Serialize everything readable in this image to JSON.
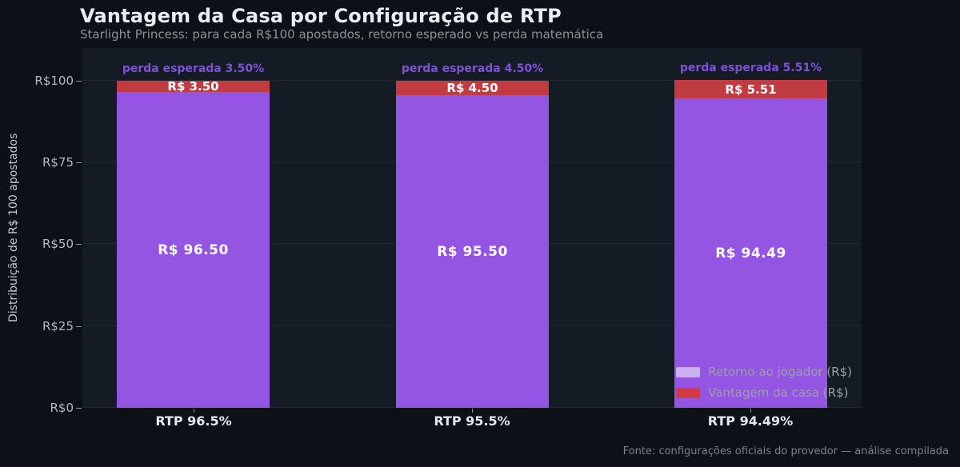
{
  "page": {
    "title": "Vantagem da Casa por Configuração de RTP",
    "subtitle": "Starlight Princess: para cada R$100 apostados, retorno esperado vs perda matemática",
    "footer": "Fonte: configurações oficiais do provedor — análise compilada"
  },
  "chart_data": {
    "type": "bar",
    "stacked": true,
    "title": "Vantagem da Casa por Configuração de RTP",
    "subtitle": "Starlight Princess: para cada R$100 apostados, retorno esperado vs perda matemática",
    "categories": [
      "RTP 96.5%",
      "RTP 95.5%",
      "RTP 94.49%"
    ],
    "series": [
      {
        "name": "Retorno ao jogador (R$)",
        "values": [
          96.5,
          95.5,
          94.49
        ]
      },
      {
        "name": "Vantagem da casa (R$)",
        "values": [
          3.5,
          4.5,
          5.51
        ]
      }
    ],
    "player_value_labels": [
      "R$ 96.50",
      "R$ 95.50",
      "R$ 94.49"
    ],
    "house_value_labels": [
      "R$ 3.50",
      "R$ 4.50",
      "R$ 5.51"
    ],
    "annotations": [
      "perda esperada 3.50%",
      "perda esperada 4.50%",
      "perda esperada 5.51%"
    ],
    "xlabel": "",
    "ylabel": "Distribuição de R$ 100 apostados",
    "yticks": [
      "R$0",
      "R$25",
      "R$50",
      "R$75",
      "R$100"
    ],
    "ytick_values": [
      0,
      25,
      50,
      75,
      100
    ],
    "ylim": [
      0,
      110
    ],
    "grid": true,
    "legend_position": "lower right"
  },
  "colors": {
    "background": "#0d1117",
    "plot_background": "#151b24",
    "grid_color": "#212834",
    "title_color": "#e9edf1",
    "muted_color": "#8b929a",
    "bar_player": "#9355e2",
    "bar_house": "#c23b40",
    "annotation_color": "#7e52d8",
    "legend_player": "#c9b2ef",
    "legend_house": "#d23b45"
  }
}
